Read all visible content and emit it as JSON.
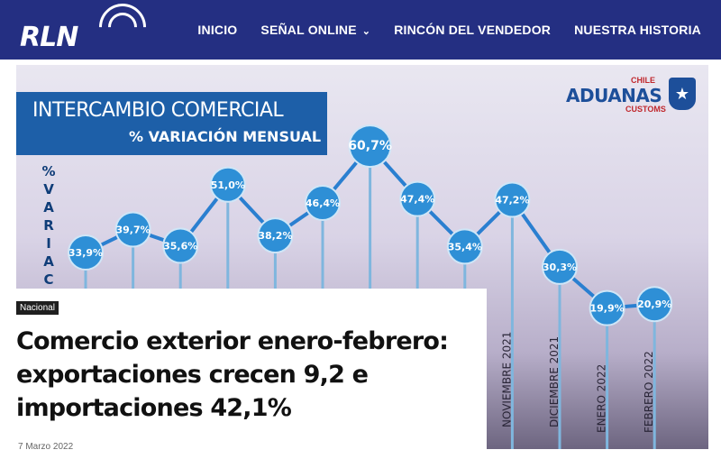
{
  "header": {
    "logo_text": "RLN",
    "nav": [
      {
        "label": "INICIO"
      },
      {
        "label": "SEÑAL ONLINE",
        "dropdown": true
      },
      {
        "label": "RINCÓN DEL VENDEDOR"
      },
      {
        "label": "NUESTRA HISTORIA"
      }
    ],
    "colors": {
      "bar": "#242f82",
      "text": "#ffffff"
    }
  },
  "article": {
    "category": "Nacional",
    "title": "Comercio exterior enero-febrero: exportaciones crecen 9,2 e importaciones 42,1%",
    "date": "7 Marzo 2022"
  },
  "image": {
    "title_line1": "INTERCAMBIO COMERCIAL",
    "title_line2": "% VARIACIÓN MENSUAL",
    "logo_main": "ADUANAS",
    "logo_chile": "CHILE",
    "logo_customs": "CUSTOMS",
    "y_label": "% VARIACI",
    "x_labels_visible": [
      "NOVIEMBRE 2021",
      "DICIEMBRE 2021",
      "ENERO 2022",
      "FEBRERO 2022"
    ],
    "colors": {
      "accent": "#1d5fa8",
      "point": "#2e8fd6"
    }
  },
  "chart_data": {
    "type": "line",
    "values": [
      33.9,
      39.7,
      35.6,
      51.0,
      38.2,
      46.4,
      60.7,
      47.4,
      35.4,
      47.2,
      30.3,
      19.9,
      20.9
    ],
    "labels": [
      "33,9%",
      "39,7%",
      "35,6%",
      "51,0%",
      "38,2%",
      "46,4%",
      "60,7%",
      "47,4%",
      "35,4%",
      "47,2%",
      "30,3%",
      "19,9%",
      "20,9%"
    ],
    "title": "INTERCAMBIO COMERCIAL",
    "subtitle": "% VARIACIÓN MENSUAL"
  }
}
